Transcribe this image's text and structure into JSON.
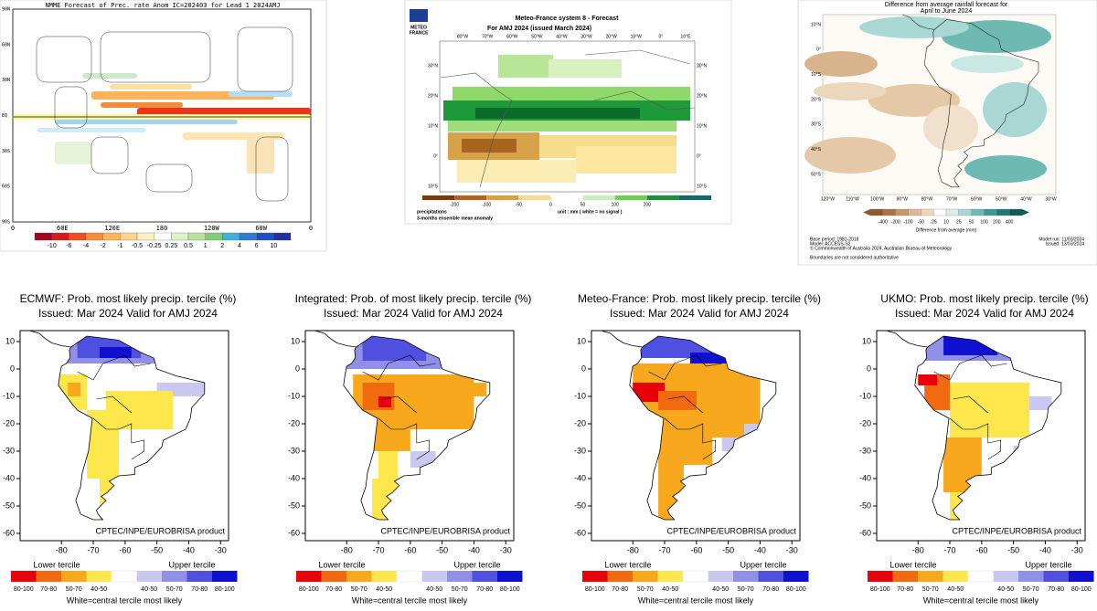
{
  "nmme": {
    "title": "NMME Forecast of Prec. rate Anom IC=202403 for Lead 1 2024AMJ",
    "lat_labels": [
      "90N",
      "60N",
      "30N",
      "EQ",
      "30S",
      "60S",
      "90S"
    ],
    "lon_labels": [
      "0",
      "60E",
      "120E",
      "180",
      "120W",
      "60W",
      "0"
    ],
    "colorbar_labels": [
      -10,
      -6,
      -4,
      -2,
      -1,
      -0.5,
      -0.25,
      0.25,
      0.5,
      1,
      2,
      4,
      6,
      10
    ]
  },
  "meteo_france": {
    "logo": [
      "METEO",
      "FRANCE"
    ],
    "title": "Meteo-France system 8  -  Forecast",
    "subtitle": "For AMJ 2024      (issued March 2024)",
    "lon_labels": [
      "80°W",
      "70°W",
      "60°W",
      "50°W",
      "40°W",
      "30°W",
      "20°W",
      "10°W",
      "0°",
      "10°E"
    ],
    "lat_labels": [
      "30°N",
      "20°N",
      "10°N",
      "0°",
      "10°S"
    ],
    "colorbar_labels": [
      -200,
      -100,
      -50,
      0,
      50,
      100,
      200
    ],
    "footer_left": [
      "precipitations",
      "3-months ensemble mean anomaly"
    ],
    "footer_right": "unit : mm  ( white = no signal )"
  },
  "bom": {
    "title": [
      "Difference from average rainfall forecast for",
      "April to June 2024"
    ],
    "lat_labels": [
      "10°N",
      "0°",
      "10°S",
      "20°S",
      "30°S",
      "40°S",
      "50°S"
    ],
    "lon_labels": [
      "120°W",
      "110°W",
      "100°W",
      "90°W",
      "80°W",
      "70°W",
      "60°W",
      "50°W",
      "40°W",
      "30°W"
    ],
    "colorbar_labels": [
      -400,
      -200,
      -100,
      -50,
      -25,
      10,
      25,
      50,
      100,
      200,
      400
    ],
    "colorbar_title": "Difference from average (mm)",
    "footer_left": [
      "Base period: 1981-2018",
      "Model: ACCESS-S2",
      "© Commonwealth of Australia 2024, Australian Bureau of Meteorology"
    ],
    "footer_right": [
      "Model run: 11/03/2024",
      "Issued: 13/03/2024"
    ],
    "disclaimer": "Boundaries are not considered authoritative"
  },
  "tercile_panels": [
    {
      "title": "ECMWF: Prob. most likely precip. tercile (%)",
      "issued": "Issued: Mar 2024      Valid for AMJ 2024"
    },
    {
      "title": "Integrated: Prob. of most likely precip. tercile (%)",
      "issued": "Issued: Mar 2024      Valid for AMJ 2024"
    },
    {
      "title": "Meteo-France: Prob. most likely precip. tercile (%)",
      "issued": "Issued: Mar 2024      Valid for AMJ 2024"
    },
    {
      "title": "UKMO: Prob. most likely precip. tercile (%)",
      "issued": "Issued: Mar 2024      Valid for AMJ 2024"
    }
  ],
  "tercile_common": {
    "yticks": [
      10,
      0,
      -10,
      -20,
      -30,
      -40,
      -50,
      -60
    ],
    "xticks": [
      -80,
      -70,
      -60,
      -50,
      -40,
      -30
    ],
    "credit": "CPTEC/INPE/EUROBRISA product",
    "lower": "Lower tercile",
    "upper": "Upper tercile",
    "legend_labels": [
      "80-100",
      "70-80",
      "50-70",
      "40-50",
      "40-50",
      "50-70",
      "70-80",
      "80-100"
    ],
    "note": "White=central tercile most likely"
  }
}
